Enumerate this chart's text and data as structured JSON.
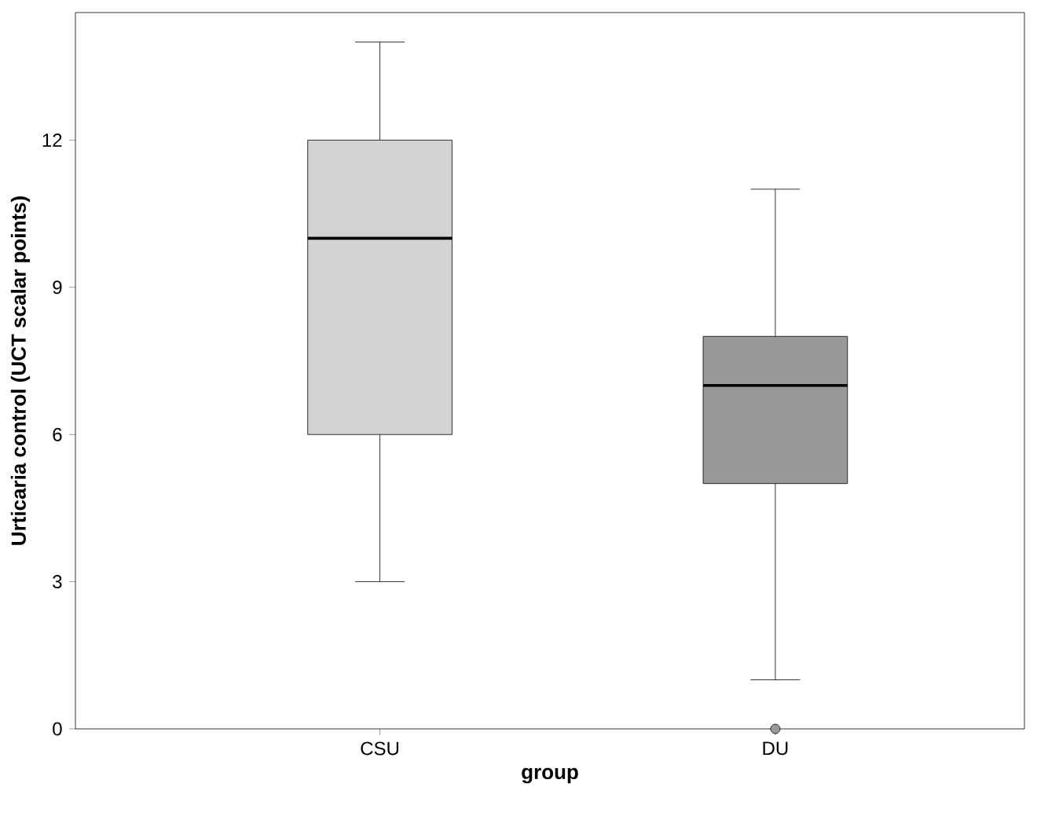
{
  "chart_data": {
    "type": "box",
    "xlabel": "group",
    "ylabel": "Urticaria control (UCT scalar points)",
    "categories": [
      "CSU",
      "DU"
    ],
    "boxes": [
      {
        "low": 3,
        "q1": 6,
        "median": 10,
        "q3": 12,
        "high": 14
      },
      {
        "low": 1,
        "q1": 5,
        "median": 7,
        "q3": 8,
        "high": 11,
        "outliers": [
          0
        ]
      }
    ],
    "colors": [
      "#d3d3d3",
      "#999999"
    ],
    "ylim": [
      0,
      14.6
    ],
    "yticks": [
      0,
      3,
      6,
      9,
      12
    ]
  }
}
